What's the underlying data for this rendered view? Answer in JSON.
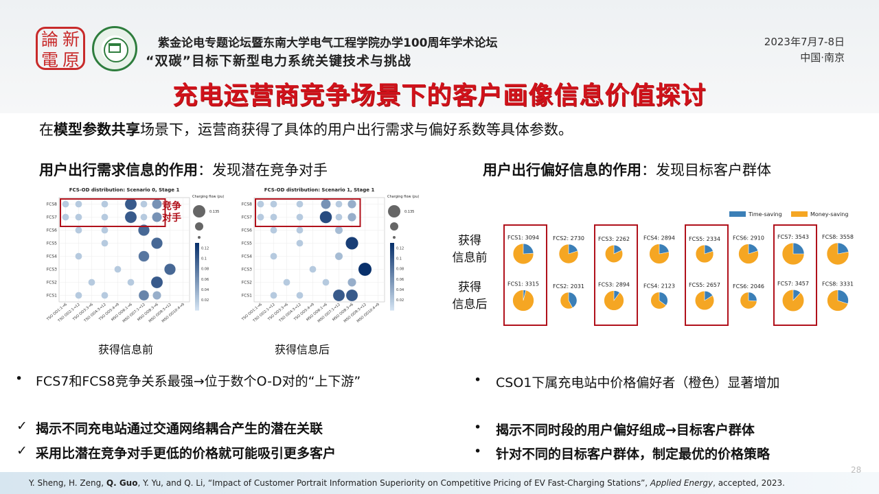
{
  "header": {
    "seal_chars": [
      "論",
      "新",
      "電",
      "原"
    ],
    "conference_line1": "紫金论电专题论坛暨东南大学电气工程学院办学100周年学术论坛",
    "conference_line2": "“双碳”目标下新型电力系统关键技术与挑战",
    "date": "2023年7月7-8日",
    "place": "中国·南京"
  },
  "title": "充电运营商竞争场景下的客户画像信息价值探讨",
  "intro": {
    "pre": "在",
    "bold": "模型参数共享",
    "post": "场景下，运营商获得了具体的用户出行需求与偏好系数等具体参数。"
  },
  "left_section": {
    "bold": "用户出行需求信息的作用",
    "rest": "：发现潜在竞争对手"
  },
  "right_section": {
    "bold": "用户出行偏好信息的作用",
    "rest": "：发现目标客户群体"
  },
  "left_panel_captions": [
    "获得信息前",
    "获得信息后"
  ],
  "highlight_note": "竞争\n对手",
  "right_row_labels": [
    "获得\n信息前",
    "获得\n信息后"
  ],
  "bullets_left": {
    "main": "FCS7和FCS8竞争关系最强→位于数个O-D对的“上下游”",
    "checks": [
      "揭示不同充电站通过交通网络耦合产生的潜在关联",
      "采用比潜在竞争对手更低的价格就可能吸引更多客户"
    ]
  },
  "bullets_right": {
    "main": "CSO1下属充电站中价格偏好者（橙色）显著增加",
    "items": [
      "揭示不同时段的用户偏好组成→目标客户群体",
      "针对不同的目标客户群体，制定最优的价格策略"
    ]
  },
  "reference": {
    "authors_pre": "Y. Sheng, H. Zeng, ",
    "authors_bold": "Q. Guo",
    "authors_post": ", Y. Yu, and Q. Li, “Impact of Customer Portrait Information Superiority on Competitive Pricing of EV Fast-Charging Stations”, ",
    "journal": "Applied Energy",
    "tail": ", accepted, 2023."
  },
  "page_number": "28",
  "colors": {
    "title_red": "#d0121b",
    "box_red": "#b0101a",
    "time_saving": "#3b7fb7",
    "money_saving": "#f5a623"
  },
  "chart_data": [
    {
      "type": "scatter",
      "title": "FCS-OD distribution: Scenario 0, Stage 1",
      "x_categories": [
        "TSO OD1:1→6",
        "TSO OD2:1→12",
        "TSO OD3:3→6",
        "TSO OD4:3→12",
        "TSO OD5:4→9",
        "MSO OD6:1→6",
        "MSO OD7:1→12",
        "MSO OD8:3→6",
        "MSO OD9:3→12",
        "MSO OD10:4→9"
      ],
      "y_categories": [
        "FCS8",
        "FCS7",
        "FCS6",
        "FCS5",
        "FCS4",
        "FCS3",
        "FCS2",
        "FCS1"
      ],
      "size_legend_title": "Charging flow (pu)",
      "size_legend_value": 0.135,
      "color_ticks": [
        0.12,
        0.1,
        0.08,
        0.06,
        0.04,
        0.02
      ],
      "points": [
        {
          "x": "TSO OD1:1→6",
          "y": "FCS8",
          "v": 0.02
        },
        {
          "x": "TSO OD2:1→12",
          "y": "FCS8",
          "v": 0.02
        },
        {
          "x": "TSO OD4:3→12",
          "y": "FCS8",
          "v": 0.02
        },
        {
          "x": "MSO OD6:1→6",
          "y": "FCS8",
          "v": 0.1
        },
        {
          "x": "MSO OD7:1→12",
          "y": "FCS8",
          "v": 0.02
        },
        {
          "x": "MSO OD8:3→6",
          "y": "FCS8",
          "v": 0.06
        },
        {
          "x": "TSO OD1:1→6",
          "y": "FCS7",
          "v": 0.02
        },
        {
          "x": "TSO OD2:1→12",
          "y": "FCS7",
          "v": 0.02
        },
        {
          "x": "TSO OD4:3→12",
          "y": "FCS7",
          "v": 0.02
        },
        {
          "x": "MSO OD6:1→6",
          "y": "FCS7",
          "v": 0.1
        },
        {
          "x": "MSO OD7:1→12",
          "y": "FCS7",
          "v": 0.02
        },
        {
          "x": "MSO OD8:3→6",
          "y": "FCS7",
          "v": 0.06
        },
        {
          "x": "TSO OD2:1→12",
          "y": "FCS6",
          "v": 0.02
        },
        {
          "x": "TSO OD4:3→12",
          "y": "FCS6",
          "v": 0.02
        },
        {
          "x": "MSO OD7:1→12",
          "y": "FCS6",
          "v": 0.09
        },
        {
          "x": "TSO OD4:3→12",
          "y": "FCS5",
          "v": 0.02
        },
        {
          "x": "MSO OD8:3→6",
          "y": "FCS5",
          "v": 0.09
        },
        {
          "x": "TSO OD2:1→12",
          "y": "FCS4",
          "v": 0.02
        },
        {
          "x": "MSO OD7:1→12",
          "y": "FCS4",
          "v": 0.08
        },
        {
          "x": "TSO OD5:4→9",
          "y": "FCS3",
          "v": 0.02
        },
        {
          "x": "MSO OD9:3→12",
          "y": "FCS3",
          "v": 0.09
        },
        {
          "x": "TSO OD3:3→6",
          "y": "FCS2",
          "v": 0.02
        },
        {
          "x": "MSO OD6:1→6",
          "y": "FCS2",
          "v": 0.02
        },
        {
          "x": "MSO OD8:3→6",
          "y": "FCS2",
          "v": 0.1
        },
        {
          "x": "TSO OD2:1→12",
          "y": "FCS1",
          "v": 0.02
        },
        {
          "x": "TSO OD4:3→12",
          "y": "FCS1",
          "v": 0.02
        },
        {
          "x": "MSO OD7:1→12",
          "y": "FCS1",
          "v": 0.07
        },
        {
          "x": "MSO OD8:3→6",
          "y": "FCS1",
          "v": 0.04
        }
      ]
    },
    {
      "type": "scatter",
      "title": "FCS-OD distribution: Scenario 1, Stage 1",
      "x_categories": [
        "TSO OD1:1→6",
        "TSO OD2:1→12",
        "TSO OD3:3→6",
        "TSO OD4:3→12",
        "TSO OD5:4→9",
        "MSO OD6:1→6",
        "MSO OD7:1→12",
        "MSO OD8:3→6",
        "MSO OD9:3→12",
        "MSO OD10:4→9"
      ],
      "y_categories": [
        "FCS8",
        "FCS7",
        "FCS6",
        "FCS5",
        "FCS4",
        "FCS3",
        "FCS2",
        "FCS1"
      ],
      "size_legend_title": "Charging flow (pu)",
      "size_legend_value": 0.135,
      "color_ticks": [
        0.12,
        0.1,
        0.08,
        0.06,
        0.04,
        0.02
      ],
      "points": [
        {
          "x": "TSO OD1:1→6",
          "y": "FCS8",
          "v": 0.02
        },
        {
          "x": "TSO OD2:1→12",
          "y": "FCS8",
          "v": 0.02
        },
        {
          "x": "TSO OD4:3→12",
          "y": "FCS8",
          "v": 0.02
        },
        {
          "x": "MSO OD6:1→6",
          "y": "FCS8",
          "v": 0.06
        },
        {
          "x": "MSO OD7:1→12",
          "y": "FCS8",
          "v": 0.02
        },
        {
          "x": "MSO OD8:3→6",
          "y": "FCS8",
          "v": 0.04
        },
        {
          "x": "TSO OD1:1→6",
          "y": "FCS7",
          "v": 0.02
        },
        {
          "x": "TSO OD2:1→12",
          "y": "FCS7",
          "v": 0.02
        },
        {
          "x": "TSO OD4:3→12",
          "y": "FCS7",
          "v": 0.02
        },
        {
          "x": "MSO OD6:1→6",
          "y": "FCS7",
          "v": 0.11
        },
        {
          "x": "MSO OD7:1→12",
          "y": "FCS7",
          "v": 0.02
        },
        {
          "x": "MSO OD8:3→6",
          "y": "FCS7",
          "v": 0.04
        },
        {
          "x": "TSO OD2:1→12",
          "y": "FCS6",
          "v": 0.02
        },
        {
          "x": "TSO OD4:3→12",
          "y": "FCS6",
          "v": 0.02
        },
        {
          "x": "MSO OD7:1→12",
          "y": "FCS6",
          "v": 0.03
        },
        {
          "x": "TSO OD4:3→12",
          "y": "FCS5",
          "v": 0.02
        },
        {
          "x": "MSO OD8:3→6",
          "y": "FCS5",
          "v": 0.12
        },
        {
          "x": "TSO OD2:1→12",
          "y": "FCS4",
          "v": 0.02
        },
        {
          "x": "MSO OD7:1→12",
          "y": "FCS4",
          "v": 0.03
        },
        {
          "x": "TSO OD5:4→9",
          "y": "FCS3",
          "v": 0.02
        },
        {
          "x": "MSO OD9:3→12",
          "y": "FCS3",
          "v": 0.135
        },
        {
          "x": "TSO OD3:3→6",
          "y": "FCS2",
          "v": 0.02
        },
        {
          "x": "MSO OD6:1→6",
          "y": "FCS2",
          "v": 0.02
        },
        {
          "x": "MSO OD8:3→6",
          "y": "FCS2",
          "v": 0.04
        },
        {
          "x": "TSO OD2:1→12",
          "y": "FCS1",
          "v": 0.02
        },
        {
          "x": "TSO OD4:3→12",
          "y": "FCS1",
          "v": 0.02
        },
        {
          "x": "MSO OD7:1→12",
          "y": "FCS1",
          "v": 0.1
        },
        {
          "x": "MSO OD8:3→6",
          "y": "FCS1",
          "v": 0.1
        }
      ]
    },
    {
      "type": "pie",
      "legend": [
        "Time-saving",
        "Money-saving"
      ],
      "rows": [
        {
          "label": "获得\n信息前",
          "stations": [
            {
              "label": "FCS1: 3094",
              "time_share": 0.24
            },
            {
              "label": "FCS2: 2730",
              "time_share": 0.2
            },
            {
              "label": "FCS3: 2262",
              "time_share": 0.18
            },
            {
              "label": "FCS4: 2894",
              "time_share": 0.22
            },
            {
              "label": "FCS5: 2334",
              "time_share": 0.2
            },
            {
              "label": "FCS6: 2910",
              "time_share": 0.2
            },
            {
              "label": "FCS7: 3543",
              "time_share": 0.25
            },
            {
              "label": "FCS8: 3558",
              "time_share": 0.22
            }
          ]
        },
        {
          "label": "获得\n信息后",
          "stations": [
            {
              "label": "FCS1: 3315",
              "time_share": 0.04
            },
            {
              "label": "FCS2: 2031",
              "time_share": 0.42
            },
            {
              "label": "FCS3: 2894",
              "time_share": 0.1
            },
            {
              "label": "FCS4: 2123",
              "time_share": 0.35
            },
            {
              "label": "FCS5: 2657",
              "time_share": 0.16
            },
            {
              "label": "FCS6: 2046",
              "time_share": 0.26
            },
            {
              "label": "FCS7: 3457",
              "time_share": 0.12
            },
            {
              "label": "FCS8: 3331",
              "time_share": 0.3
            }
          ]
        }
      ]
    }
  ]
}
